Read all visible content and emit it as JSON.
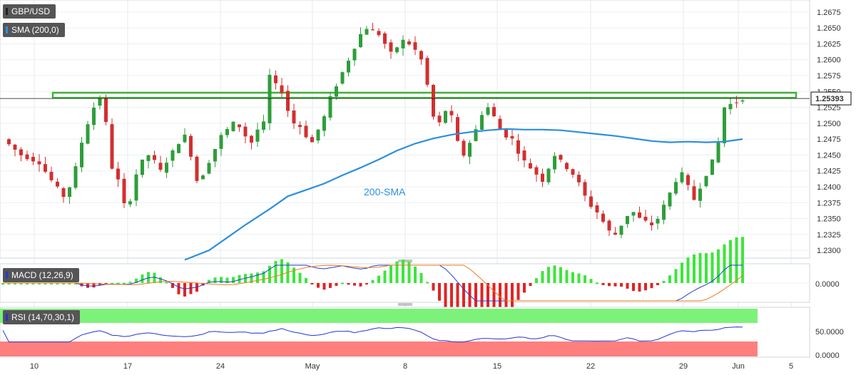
{
  "chart_data": [
    {
      "type": "candlestick",
      "title": "GBP/USD",
      "indicator": "SMA (200,0)",
      "ylim": [
        1.229,
        1.2685
      ],
      "yticks": [
        1.2675,
        1.265,
        1.2625,
        1.26,
        1.2575,
        1.255,
        1.2525,
        1.25,
        1.2475,
        1.245,
        1.2425,
        1.24,
        1.2375,
        1.235,
        1.2325,
        1.23
      ],
      "ytick_labels": [
        "1.2675",
        "1.2650",
        "1.2625",
        "1.2600",
        "1.2575",
        "1.2550",
        "1.2525",
        "1.2500",
        "1.2475",
        "1.2450",
        "1.2425",
        "1.2400",
        "1.2375",
        "1.2350",
        "1.2325",
        "1.2300"
      ],
      "xticks": [
        "10",
        "17",
        "24",
        "May",
        "8",
        "15",
        "22",
        "29",
        "Jun",
        "5"
      ],
      "current_price": 1.2539,
      "current_price_label": "1.25393",
      "resistance_zone": [
        1.254,
        1.2548
      ],
      "sma_label": "200-SMA",
      "close_path": [
        [
          0,
          1.2475
        ],
        [
          3,
          1.245
        ],
        [
          6,
          1.2438
        ],
        [
          8,
          1.241
        ],
        [
          10,
          1.2385
        ],
        [
          11,
          1.24
        ],
        [
          12,
          1.243
        ],
        [
          13,
          1.247
        ],
        [
          14,
          1.25
        ],
        [
          15,
          1.2525
        ],
        [
          16,
          1.254
        ],
        [
          17,
          1.25
        ],
        [
          18,
          1.243
        ],
        [
          19,
          1.241
        ],
        [
          20,
          1.2372
        ],
        [
          21,
          1.238
        ],
        [
          22,
          1.242
        ],
        [
          23,
          1.244
        ],
        [
          24,
          1.245
        ],
        [
          25,
          1.244
        ],
        [
          26,
          1.2425
        ],
        [
          27,
          1.244
        ],
        [
          28,
          1.2455
        ],
        [
          29,
          1.247
        ],
        [
          30,
          1.248
        ],
        [
          31,
          1.245
        ],
        [
          32,
          1.241
        ],
        [
          33,
          1.242
        ],
        [
          34,
          1.244
        ],
        [
          35,
          1.246
        ],
        [
          36,
          1.248
        ],
        [
          37,
          1.249
        ],
        [
          38,
          1.25
        ],
        [
          39,
          1.2495
        ],
        [
          40,
          1.248
        ],
        [
          41,
          1.247
        ],
        [
          42,
          1.249
        ],
        [
          43,
          1.25
        ],
        [
          44,
          1.2575
        ],
        [
          45,
          1.256
        ],
        [
          46,
          1.255
        ],
        [
          47,
          1.252
        ],
        [
          48,
          1.25
        ],
        [
          49,
          1.2495
        ],
        [
          50,
          1.248
        ],
        [
          51,
          1.247
        ],
        [
          52,
          1.249
        ],
        [
          53,
          1.251
        ],
        [
          54,
          1.254
        ],
        [
          55,
          1.256
        ],
        [
          56,
          1.258
        ],
        [
          57,
          1.26
        ],
        [
          58,
          1.262
        ],
        [
          59,
          1.264
        ],
        [
          60,
          1.265
        ],
        [
          61,
          1.2645
        ],
        [
          62,
          1.264
        ],
        [
          63,
          1.2625
        ],
        [
          64,
          1.261
        ],
        [
          65,
          1.262
        ],
        [
          66,
          1.263
        ],
        [
          67,
          1.2625
        ],
        [
          68,
          1.2615
        ],
        [
          69,
          1.26
        ],
        [
          70,
          1.256
        ],
        [
          71,
          1.251
        ],
        [
          72,
          1.25
        ],
        [
          73,
          1.252
        ],
        [
          74,
          1.251
        ],
        [
          75,
          1.247
        ],
        [
          76,
          1.245
        ],
        [
          77,
          1.247
        ],
        [
          78,
          1.249
        ],
        [
          79,
          1.2515
        ],
        [
          80,
          1.2525
        ],
        [
          81,
          1.251
        ],
        [
          82,
          1.249
        ],
        [
          83,
          1.248
        ],
        [
          84,
          1.2475
        ],
        [
          85,
          1.2455
        ],
        [
          86,
          1.244
        ],
        [
          87,
          1.243
        ],
        [
          88,
          1.242
        ],
        [
          89,
          1.241
        ],
        [
          90,
          1.243
        ],
        [
          91,
          1.245
        ],
        [
          92,
          1.244
        ],
        [
          93,
          1.243
        ],
        [
          94,
          1.242
        ],
        [
          95,
          1.2405
        ],
        [
          96,
          1.2385
        ],
        [
          97,
          1.237
        ],
        [
          98,
          1.236
        ],
        [
          99,
          1.2345
        ],
        [
          100,
          1.233
        ],
        [
          101,
          1.2325
        ],
        [
          102,
          1.234
        ],
        [
          103,
          1.2355
        ],
        [
          104,
          1.236
        ],
        [
          105,
          1.235
        ],
        [
          106,
          1.2345
        ],
        [
          107,
          1.234
        ],
        [
          108,
          1.235
        ],
        [
          109,
          1.237
        ],
        [
          110,
          1.239
        ],
        [
          111,
          1.241
        ],
        [
          112,
          1.242
        ],
        [
          113,
          1.24
        ],
        [
          114,
          1.238
        ],
        [
          115,
          1.24
        ],
        [
          116,
          1.242
        ],
        [
          117,
          1.244
        ],
        [
          118,
          1.247
        ],
        [
          119,
          1.2525
        ],
        [
          120,
          1.253
        ],
        [
          121,
          1.2533
        ],
        [
          122,
          1.2539
        ]
      ],
      "sma_200": [
        [
          30,
          1.2285
        ],
        [
          34,
          1.23
        ],
        [
          37,
          1.232
        ],
        [
          40,
          1.234
        ],
        [
          44,
          1.2365
        ],
        [
          47,
          1.2385
        ],
        [
          50,
          1.2395
        ],
        [
          53,
          1.2405
        ],
        [
          56,
          1.2418
        ],
        [
          59,
          1.243
        ],
        [
          62,
          1.2443
        ],
        [
          65,
          1.2457
        ],
        [
          68,
          1.2468
        ],
        [
          71,
          1.2476
        ],
        [
          74,
          1.2482
        ],
        [
          77,
          1.2486
        ],
        [
          80,
          1.2489
        ],
        [
          83,
          1.2491
        ],
        [
          86,
          1.249
        ],
        [
          89,
          1.249
        ],
        [
          92,
          1.2489
        ],
        [
          95,
          1.2486
        ],
        [
          98,
          1.2483
        ],
        [
          101,
          1.248
        ],
        [
          104,
          1.2476
        ],
        [
          107,
          1.2472
        ],
        [
          110,
          1.247
        ],
        [
          113,
          1.2471
        ],
        [
          116,
          1.247
        ],
        [
          119,
          1.2471
        ],
        [
          122,
          1.2475
        ]
      ]
    },
    {
      "type": "line",
      "title": "MACD (12,26,9)",
      "ylim": [
        -0.003,
        0.003
      ],
      "yticks": [
        0.0
      ],
      "ytick_labels": [
        "0.0000"
      ]
    },
    {
      "type": "line",
      "title": "RSI (14,70,30,1)",
      "ylim": [
        0,
        100
      ],
      "yticks": [
        50,
        0
      ],
      "ytick_labels": [
        "50.0000",
        "0.0000"
      ],
      "overbought": 70,
      "oversold": 30
    }
  ],
  "colors": {
    "up": "#2e9e3a",
    "down": "#d32f2f",
    "sma": "#2b8fe0",
    "zone": "#3fb33a",
    "macd": "#1f3fd6",
    "signal": "#f07b1a",
    "rsi": "#2433d6",
    "overbought": "#7cf27a",
    "oversold": "#ff7f7f"
  }
}
